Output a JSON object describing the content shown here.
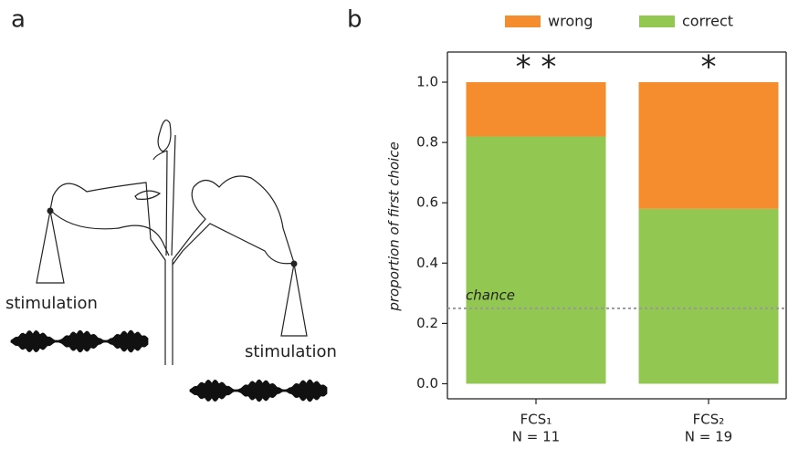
{
  "diagram": {
    "label": "a",
    "stimulation_labels": [
      "stimulation",
      "stimulation"
    ]
  },
  "chart_data": {
    "type": "stacked_bar",
    "panel_label": "b",
    "y_label": "proportion of first choice",
    "categories": [
      "FCS₁",
      "FCS₂"
    ],
    "category_notes": [
      "N = 11",
      "N = 19"
    ],
    "series": [
      {
        "name": "correct",
        "color": "#92c851",
        "values": [
          0.82,
          0.58
        ]
      },
      {
        "name": "wrong",
        "color": "#f58d2e",
        "values": [
          0.18,
          0.42
        ]
      }
    ],
    "ylim": [
      -0.05,
      1.1
    ],
    "yticks": [
      {
        "value": 0,
        "label": "0.0"
      },
      0.2,
      0.4,
      0.6,
      0.8,
      {
        "value": 1,
        "label": "1.0"
      }
    ],
    "chance_level": 0.25,
    "chance_label": "chance",
    "annotations": [
      "* *",
      "*"
    ],
    "legend_order": [
      1,
      0
    ]
  }
}
